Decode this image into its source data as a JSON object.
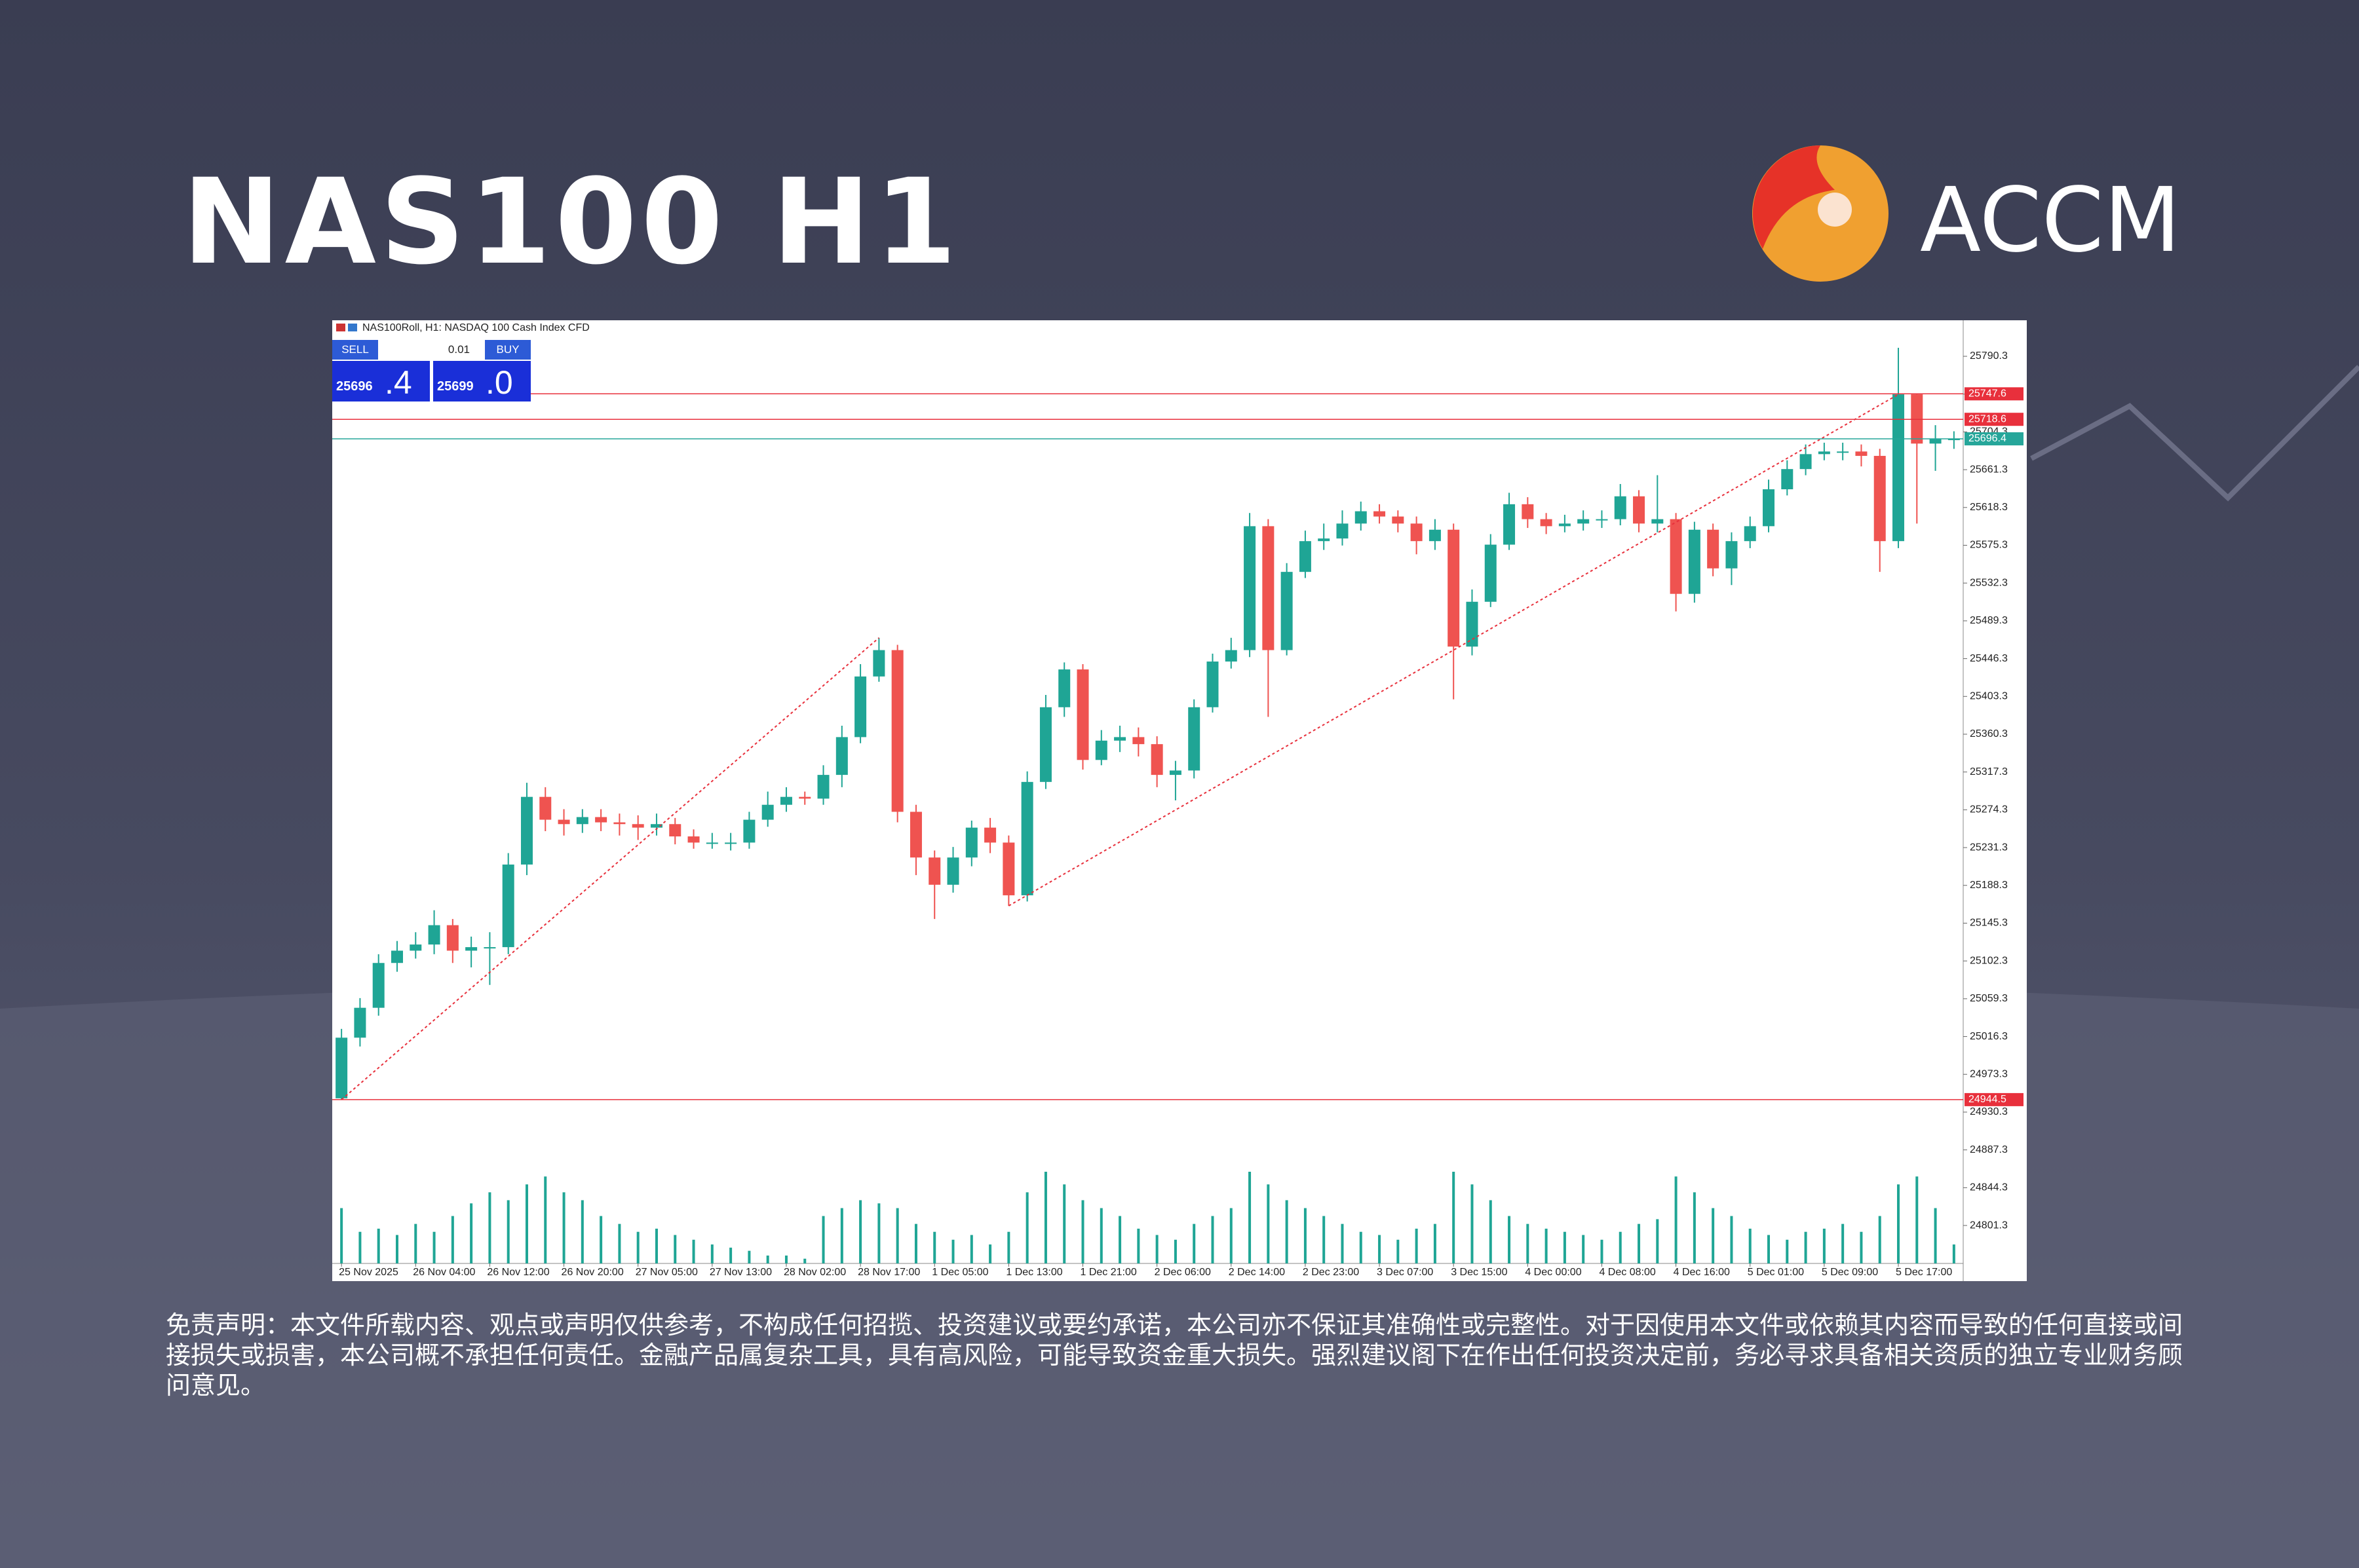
{
  "header": {
    "title": "NAS100 H1",
    "logo": "ACCM"
  },
  "trade_panel": {
    "sell": "SELL",
    "buy": "BUY",
    "lot": "0.01",
    "sell_main": "25696",
    "sell_frac": ".4",
    "buy_main": "25699",
    "buy_frac": ".0"
  },
  "chart_data": {
    "type": "candlestick",
    "title": "NAS100Roll, H1:  NASDAQ 100 Cash Index CFD",
    "up_color": "#1fa595",
    "down_color": "#ef5350",
    "categories": [
      "25 Nov 2025",
      null,
      null,
      null,
      "26 Nov 04:00",
      null,
      null,
      null,
      "26 Nov 12:00",
      null,
      null,
      null,
      "26 Nov 20:00",
      null,
      null,
      null,
      "27 Nov 05:00",
      null,
      null,
      null,
      "27 Nov 13:00",
      null,
      null,
      null,
      "28 Nov 02:00",
      null,
      null,
      null,
      "28 Nov 17:00",
      null,
      null,
      null,
      "1 Dec 05:00",
      null,
      null,
      null,
      "1 Dec 13:00",
      null,
      null,
      null,
      "1 Dec 21:00",
      null,
      null,
      null,
      "2 Dec 06:00",
      null,
      null,
      null,
      "2 Dec 14:00",
      null,
      null,
      null,
      "2 Dec 23:00",
      null,
      null,
      null,
      "3 Dec 07:00",
      null,
      null,
      null,
      "3 Dec 15:00",
      null,
      null,
      null,
      "4 Dec 00:00",
      null,
      null,
      null,
      "4 Dec 08:00",
      null,
      null,
      null,
      "4 Dec 16:00",
      null,
      null,
      null,
      "5 Dec 01:00",
      null,
      null,
      null,
      "5 Dec 09:00",
      null,
      null,
      null,
      "5 Dec 17:00",
      null,
      null,
      null
    ],
    "open": [
      24946,
      25015,
      25049,
      25100,
      25114,
      25121,
      25143,
      25114,
      25118,
      25118,
      25212,
      25289,
      25263,
      25258,
      25266,
      25260,
      25258,
      25254,
      25258,
      25244,
      25237,
      25237,
      25237,
      25263,
      25280,
      25289,
      25287,
      25314,
      25357,
      25426,
      25456,
      25272,
      25220,
      25189,
      25220,
      25254,
      25237,
      25177,
      25306,
      25391,
      25434,
      25331,
      25353,
      25357,
      25349,
      25314,
      25319,
      25391,
      25443,
      25456,
      25597,
      25456,
      25545,
      25580,
      25583,
      25600,
      25614,
      25608,
      25600,
      25580,
      25593,
      25460,
      25511,
      25576,
      25622,
      25605,
      25597,
      25600,
      25605,
      25605,
      25631,
      25600,
      25605,
      25520,
      25593,
      25549,
      25580,
      25597,
      25639,
      25662,
      25679,
      25682,
      25682,
      25677,
      25580,
      25747,
      25691,
      25696
    ],
    "high": [
      25025,
      25060,
      25110,
      25125,
      25135,
      25160,
      25150,
      25130,
      25135,
      25225,
      25305,
      25300,
      25275,
      25275,
      25275,
      25270,
      25268,
      25270,
      25265,
      25252,
      25248,
      25248,
      25272,
      25295,
      25300,
      25295,
      25325,
      25370,
      25440,
      25470,
      25462,
      25280,
      25228,
      25232,
      25262,
      25265,
      25245,
      25318,
      25405,
      25442,
      25440,
      25365,
      25370,
      25368,
      25358,
      25330,
      25400,
      25452,
      25470,
      25612,
      25605,
      25555,
      25592,
      25600,
      25615,
      25625,
      25622,
      25615,
      25608,
      25605,
      25600,
      25525,
      25588,
      25635,
      25630,
      25612,
      25610,
      25615,
      25615,
      25645,
      25638,
      25655,
      25612,
      25602,
      25600,
      25590,
      25608,
      25650,
      25672,
      25690,
      25692,
      25692,
      25690,
      25685,
      25800,
      25747.6,
      25712,
      25705
    ],
    "low": [
      24944.5,
      25005,
      25040,
      25090,
      25105,
      25110,
      25100,
      25095,
      25075,
      25110,
      25200,
      25250,
      25245,
      25248,
      25250,
      25245,
      25240,
      25245,
      25235,
      25230,
      25230,
      25228,
      25230,
      25255,
      25272,
      25280,
      25280,
      25300,
      25350,
      25420,
      25260,
      25200,
      25150,
      25180,
      25210,
      25225,
      25165,
      25170,
      25298,
      25380,
      25320,
      25325,
      25340,
      25335,
      25300,
      25285,
      25310,
      25385,
      25435,
      25448,
      25380,
      25450,
      25538,
      25570,
      25575,
      25592,
      25600,
      25590,
      25565,
      25570,
      25400,
      25450,
      25505,
      25570,
      25595,
      25588,
      25590,
      25592,
      25595,
      25598,
      25590,
      25590,
      25500,
      25510,
      25540,
      25530,
      25572,
      25590,
      25632,
      25655,
      25672,
      25672,
      25665,
      25545,
      25572,
      25600,
      25660,
      25685
    ],
    "close": [
      25015,
      25049,
      25100,
      25114,
      25121,
      25143,
      25114,
      25118,
      25118,
      25212,
      25289,
      25263,
      25258,
      25266,
      25260,
      25258,
      25254,
      25258,
      25244,
      25237,
      25237,
      25237,
      25263,
      25280,
      25289,
      25287,
      25314,
      25357,
      25426,
      25456,
      25272,
      25220,
      25189,
      25220,
      25254,
      25237,
      25177,
      25306,
      25391,
      25434,
      25331,
      25353,
      25357,
      25349,
      25314,
      25319,
      25391,
      25443,
      25456,
      25597,
      25456,
      25545,
      25580,
      25583,
      25600,
      25614,
      25608,
      25600,
      25580,
      25593,
      25460,
      25511,
      25576,
      25622,
      25605,
      25597,
      25600,
      25605,
      25605,
      25631,
      25600,
      25605,
      25520,
      25593,
      25549,
      25580,
      25597,
      25639,
      25662,
      25679,
      25682,
      25682,
      25677,
      25580,
      25747,
      25691,
      25696,
      25696.4
    ],
    "volume": [
      35,
      20,
      22,
      18,
      25,
      20,
      30,
      38,
      45,
      40,
      50,
      55,
      45,
      40,
      30,
      25,
      20,
      22,
      18,
      15,
      12,
      10,
      8,
      5,
      5,
      3,
      30,
      35,
      40,
      38,
      35,
      25,
      20,
      15,
      18,
      12,
      20,
      45,
      58,
      50,
      40,
      35,
      30,
      22,
      18,
      15,
      25,
      30,
      35,
      58,
      50,
      40,
      35,
      30,
      25,
      20,
      18,
      15,
      22,
      25,
      58,
      50,
      40,
      30,
      25,
      22,
      20,
      18,
      15,
      20,
      25,
      28,
      55,
      45,
      35,
      30,
      22,
      18,
      15,
      20,
      22,
      25,
      20,
      30,
      50,
      55,
      35,
      12
    ],
    "ylim": [
      24758.1,
      25831.3
    ],
    "yticks": [
      25790.3,
      25747.3,
      25704.3,
      25661.3,
      25618.3,
      25575.3,
      25532.3,
      25489.3,
      25446.3,
      25403.3,
      25360.3,
      25317.3,
      25274.3,
      25231.3,
      25188.3,
      25145.3,
      25102.3,
      25059.3,
      25016.3,
      24973.3,
      24930.3,
      24887.3,
      24844.3,
      24801.3
    ],
    "price_lines": [
      {
        "value": 25747.6,
        "color": "#e8303c"
      },
      {
        "value": 25718.6,
        "color": "#e8303c"
      },
      {
        "value": 25696.4,
        "color": "#26a69a"
      },
      {
        "value": 24944.5,
        "color": "#e8303c"
      }
    ]
  },
  "disclaimer": "免责声明：本文件所载内容、观点或声明仅供参考，不构成任何招揽、投资建议或要约承诺，本公司亦不保证其准确性或完整性。对于因使用本文件或依赖其内容而导致的任何直接或间接损失或损害，本公司概不承担任何责任。金融产品属复杂工具，具有高风险，可能导致资金重大损失。强烈建议阁下在作出任何投资决定前，务必寻求具备相关资质的独立专业财务顾问意见。"
}
